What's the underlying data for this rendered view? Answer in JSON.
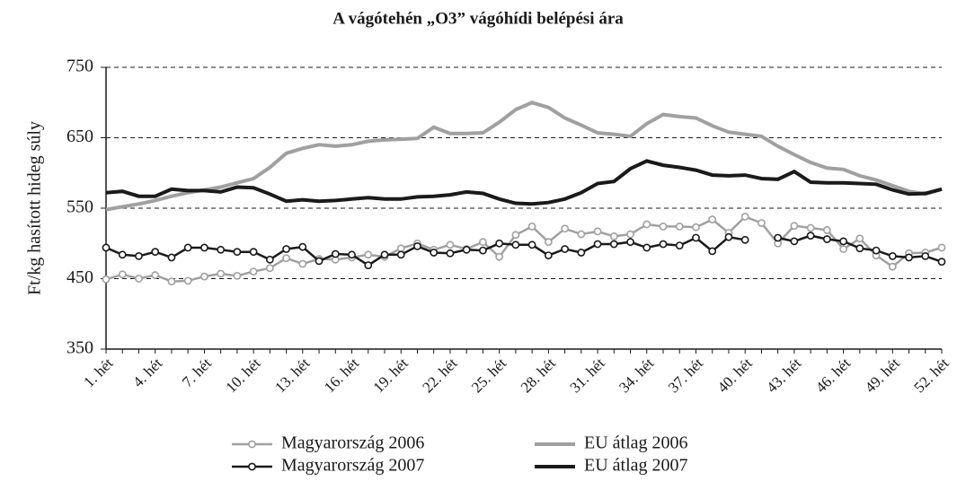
{
  "chart_data": {
    "type": "line",
    "title": "A vágótehén „O3” vágóhídi belépési ára",
    "y_label": "Ft/kg hasított hideg súly",
    "categories": [
      "1. hét",
      null,
      null,
      "4. hét",
      null,
      null,
      "7. hét",
      null,
      null,
      "10. hét",
      null,
      null,
      "13. hét",
      null,
      null,
      "16. hét",
      null,
      null,
      "19. hét",
      null,
      null,
      "22. hét",
      null,
      null,
      "25. hét",
      null,
      null,
      "28. hét",
      null,
      null,
      "31. hét",
      null,
      null,
      "34. hét",
      null,
      null,
      "37. hét",
      null,
      null,
      "40. hét",
      null,
      null,
      "43. hét",
      null,
      null,
      "46. hét",
      null,
      null,
      "49. hét",
      null,
      null,
      "52. hét"
    ],
    "ylim": [
      350,
      750
    ],
    "yticks": [
      350,
      450,
      550,
      650,
      750
    ],
    "grid": true,
    "series": [
      {
        "name": "Magyarország 2006",
        "color": "#a0a0a0",
        "markers": true,
        "values": [
          449,
          456,
          450,
          455,
          446,
          447,
          453,
          457,
          454,
          460,
          465,
          479,
          471,
          478,
          477,
          480,
          484,
          481,
          493,
          500,
          491,
          498,
          492,
          502,
          481,
          512,
          524,
          502,
          521,
          513,
          517,
          510,
          513,
          527,
          524,
          524,
          523,
          534,
          515,
          538,
          529,
          500,
          525,
          522,
          519,
          492,
          507,
          483,
          467,
          486,
          487,
          494
        ]
      },
      {
        "name": "EU átlag 2006",
        "color": "#a0a0a0",
        "markers": false,
        "values": [
          548,
          552,
          556,
          561,
          567,
          572,
          576,
          580,
          586,
          592,
          608,
          628,
          635,
          640,
          638,
          640,
          645,
          647,
          648,
          649,
          665,
          656,
          656,
          657,
          672,
          690,
          700,
          693,
          678,
          668,
          657,
          655,
          652,
          670,
          683,
          680,
          678,
          667,
          658,
          655,
          652,
          638,
          626,
          615,
          607,
          605,
          596,
          590,
          582,
          574,
          570,
          577
        ]
      },
      {
        "name": "Magyarország 2007",
        "color": "#1a1a1a",
        "markers": true,
        "values": [
          494,
          484,
          482,
          488,
          480,
          494,
          494,
          491,
          488,
          488,
          477,
          492,
          495,
          475,
          485,
          484,
          469,
          484,
          484,
          496,
          487,
          486,
          491,
          490,
          500,
          498,
          498,
          483,
          492,
          487,
          499,
          499,
          502,
          494,
          499,
          497,
          508,
          489,
          509,
          505,
          null,
          508,
          503,
          511,
          506,
          503,
          493,
          490,
          482,
          480,
          482,
          474
        ]
      },
      {
        "name": "EU átlag 2007",
        "color": "#1a1a1a",
        "markers": false,
        "values": [
          572,
          574,
          567,
          567,
          577,
          575,
          575,
          573,
          580,
          579,
          570,
          560,
          562,
          560,
          561,
          563,
          565,
          563,
          563,
          566,
          567,
          569,
          573,
          571,
          563,
          557,
          556,
          558,
          563,
          572,
          585,
          588,
          606,
          617,
          611,
          608,
          604,
          597,
          596,
          597,
          592,
          591,
          602,
          587,
          586,
          586,
          585,
          584,
          576,
          570,
          571,
          577
        ]
      }
    ]
  }
}
